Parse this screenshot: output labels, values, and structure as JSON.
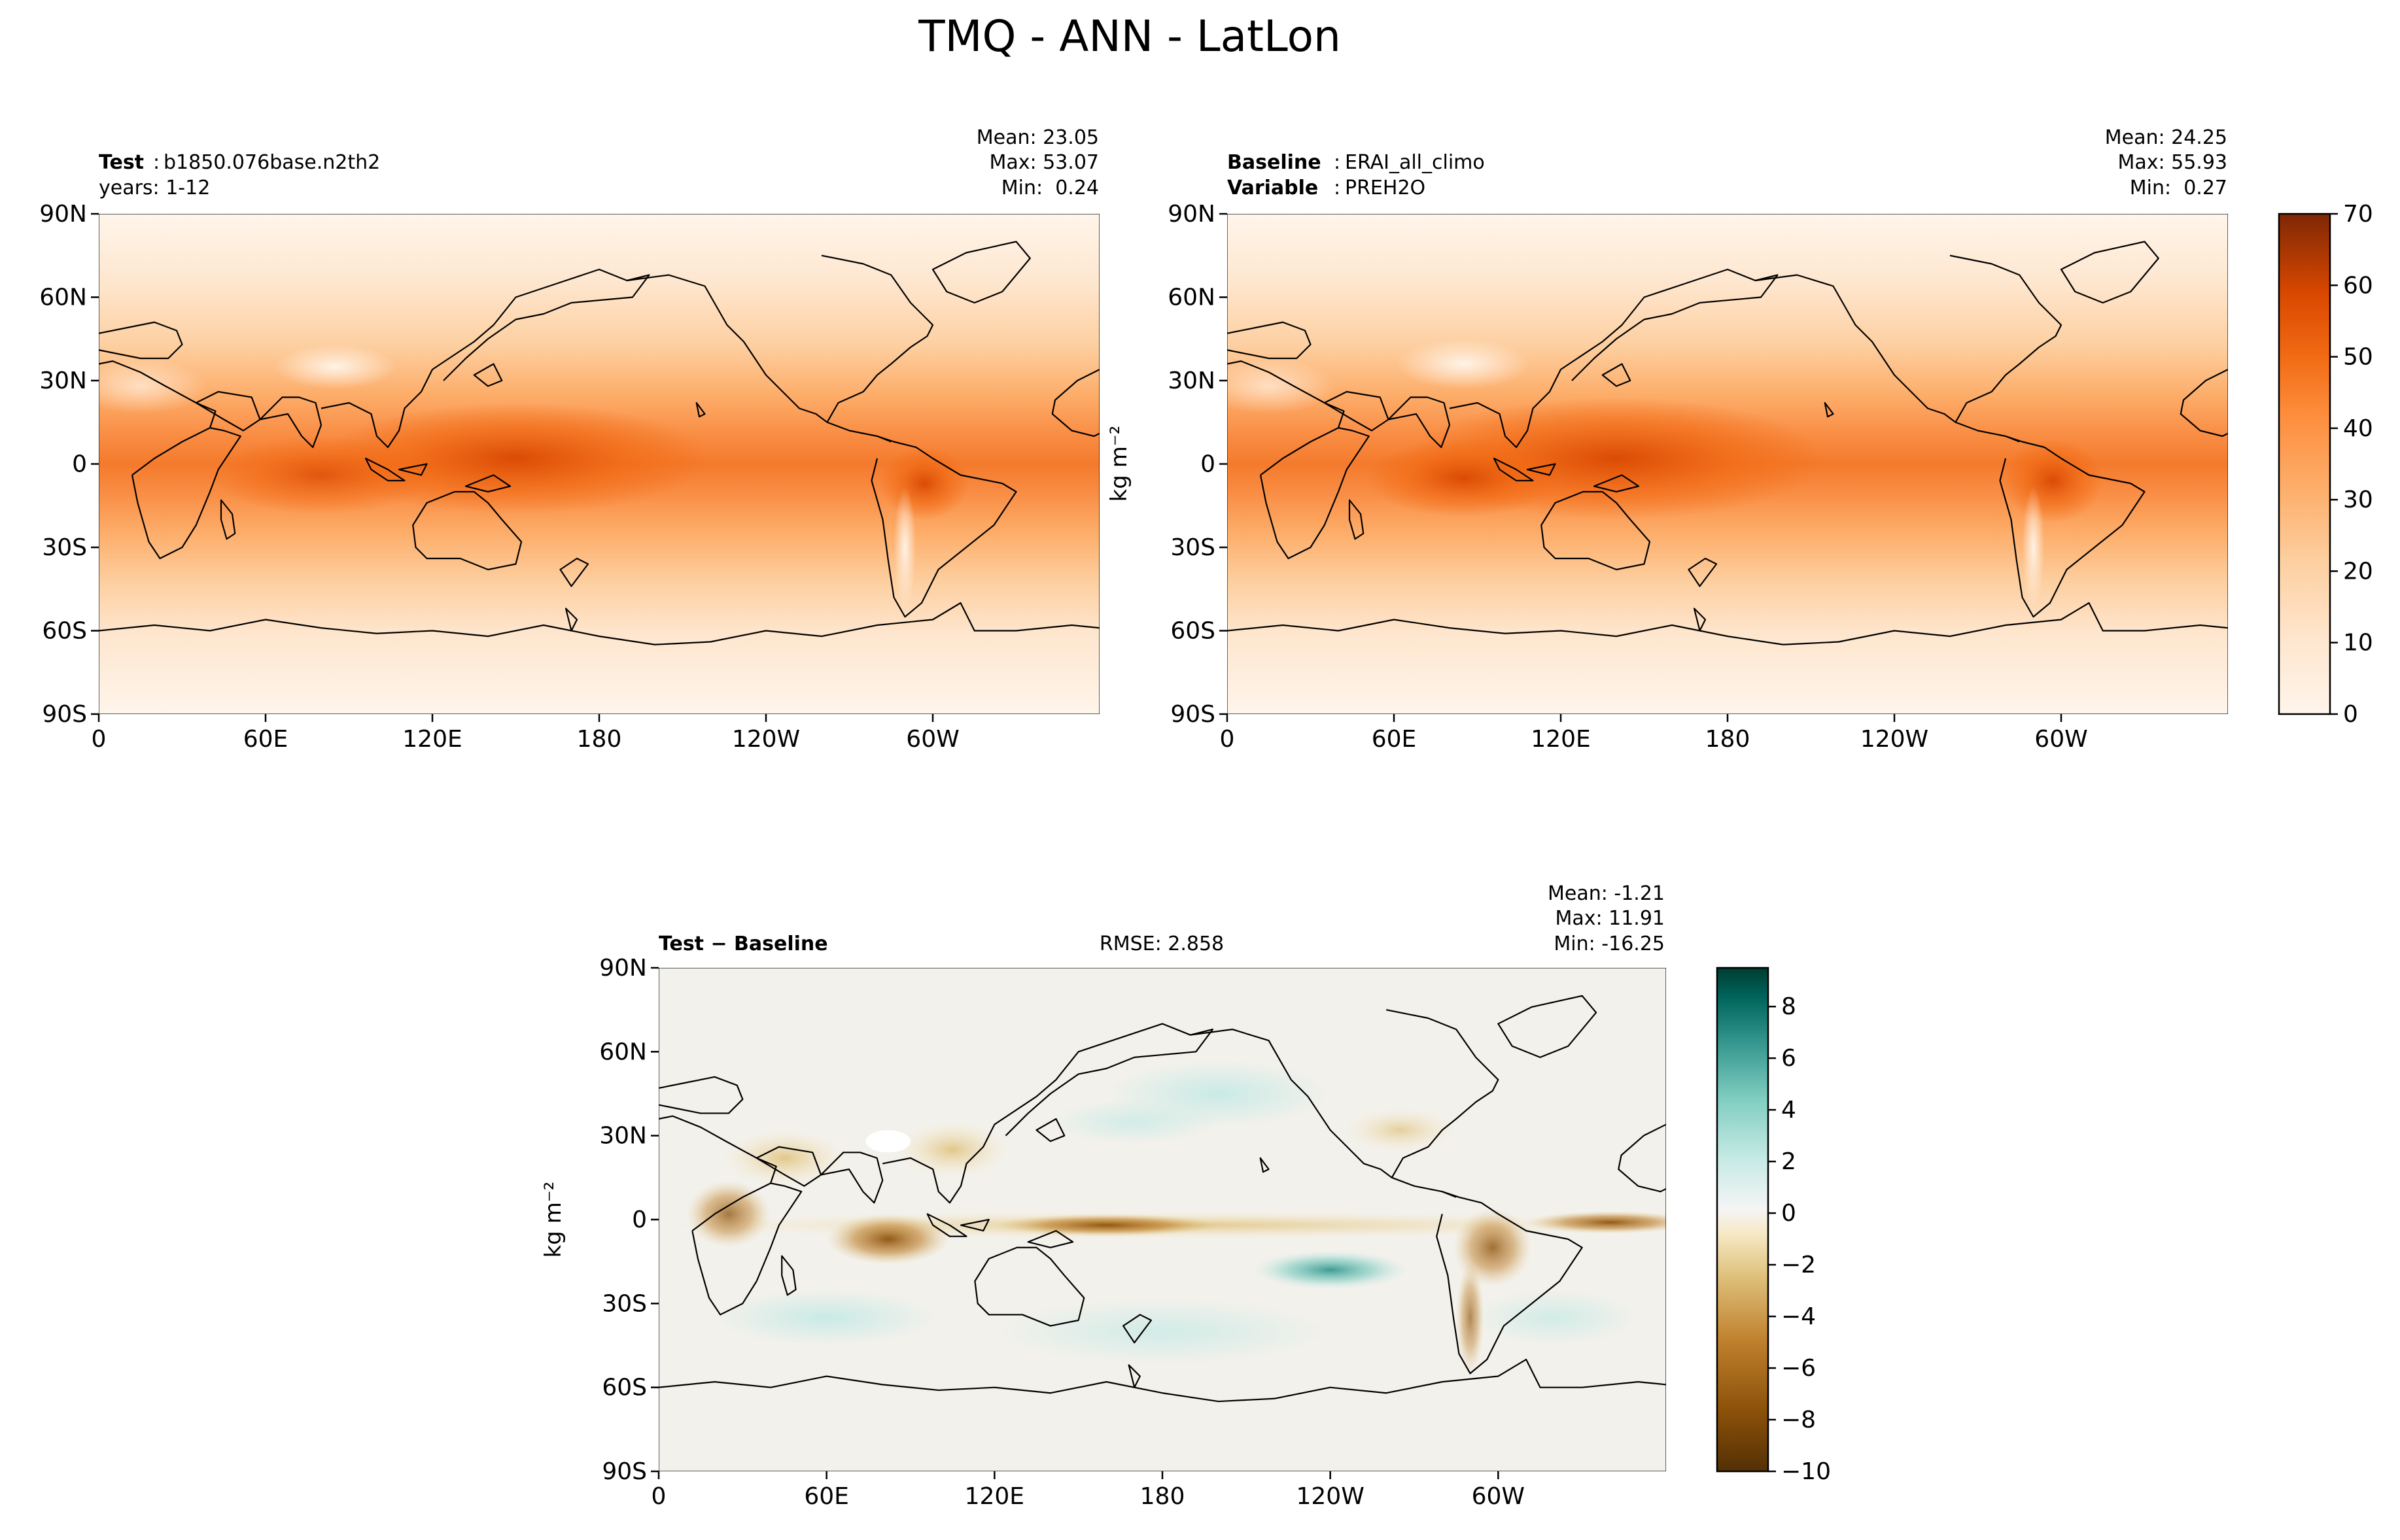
{
  "figure": {
    "title": "TMQ - ANN - LatLon"
  },
  "chart_data": [
    {
      "type": "heatmap",
      "panel": "test",
      "left_label_bold": "Test",
      "left_label_value": "b1850.076base.n2th2",
      "left_label_line2": "years: 1-12",
      "stats": {
        "mean": "Mean: 23.05",
        "max": "Max: 53.07",
        "min": "Min:  0.24"
      },
      "x_ticks": [
        "0",
        "60E",
        "120E",
        "180",
        "120W",
        "60W"
      ],
      "y_ticks": [
        "90N",
        "60N",
        "30N",
        "0",
        "30S",
        "60S",
        "90S"
      ],
      "xlim": [
        0,
        360
      ],
      "ylim": [
        -90,
        90
      ],
      "colormap": "Oranges",
      "values_description": "precipitable water, kg m^-2"
    },
    {
      "type": "heatmap",
      "panel": "baseline",
      "left_label_bold": "Baseline",
      "left_label_value": "ERAI_all_climo",
      "left_label2_bold": "Variable",
      "left_label2_value": "PREH2O",
      "stats": {
        "mean": "Mean: 24.25",
        "max": "Max: 55.93",
        "min": "Min:  0.27"
      },
      "x_ticks": [
        "0",
        "60E",
        "120E",
        "180",
        "120W",
        "60W"
      ],
      "y_ticks": [
        "90N",
        "60N",
        "30N",
        "0",
        "30S",
        "60S",
        "90S"
      ],
      "xlim": [
        0,
        360
      ],
      "ylim": [
        -90,
        90
      ],
      "colormap": "Oranges"
    },
    {
      "type": "heatmap",
      "panel": "difference",
      "left_label_bold": "Test − Baseline",
      "center_label": "RMSE: 2.858",
      "stats": {
        "mean": "Mean: -1.21",
        "max": "Max: 11.91",
        "min": "Min: -16.25"
      },
      "x_ticks": [
        "0",
        "60E",
        "120E",
        "180",
        "120W",
        "60W"
      ],
      "y_ticks": [
        "90N",
        "60N",
        "30N",
        "0",
        "30S",
        "60S",
        "90S"
      ],
      "xlim": [
        0,
        360
      ],
      "ylim": [
        -90,
        90
      ],
      "colormap": "BrBG"
    }
  ],
  "colorbars": {
    "top": {
      "label": "kg m⁻²",
      "ticks": [
        "0",
        "10",
        "20",
        "30",
        "40",
        "50",
        "60",
        "70"
      ],
      "range": [
        0,
        70
      ]
    },
    "bottom": {
      "label": "kg m⁻²",
      "ticks": [
        "−10",
        "−8",
        "−6",
        "−4",
        "−2",
        "0",
        "2",
        "4",
        "6",
        "8"
      ],
      "range": [
        -10,
        9.5
      ]
    }
  },
  "colors": {
    "oranges": [
      "#fff5eb",
      "#fee6ce",
      "#fdd0a2",
      "#fdae6b",
      "#fd8d3c",
      "#f16913",
      "#d94801",
      "#a63603",
      "#7f2704"
    ],
    "brbg": [
      "#543005",
      "#8c510a",
      "#bf812d",
      "#dfc27d",
      "#f6e8c3",
      "#f5f5f5",
      "#c7eae5",
      "#80cdc1",
      "#35978f",
      "#01665e",
      "#003c30"
    ]
  }
}
